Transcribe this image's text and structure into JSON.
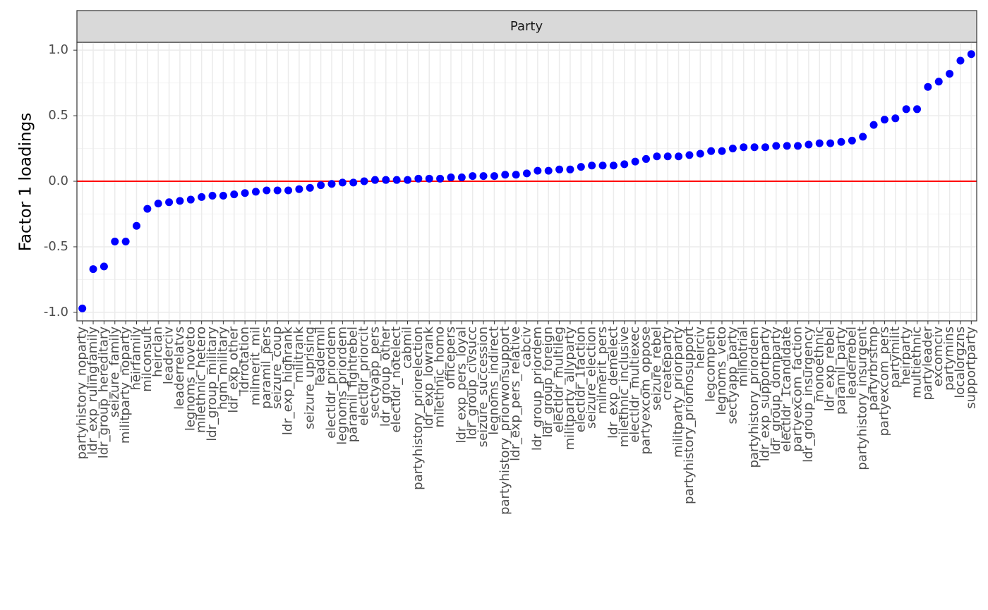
{
  "chart_data": {
    "type": "scatter",
    "facet": "Party",
    "y_label": "Factor 1 loadings",
    "categories": [
      "partyhistory_noparty",
      "ldr_exp_rulingfamily",
      "ldr_group_hereditary",
      "seizure_family",
      "militparty_noparty",
      "heirfamily",
      "milconsult",
      "heirclan",
      "leaderciv",
      "leaderrelatvs",
      "legnoms_noveto",
      "milethnic_hetero",
      "ldr_group_military",
      "hgm_military",
      "ldr_exp_other",
      "ldrrotation",
      "milmerit_mil",
      "paramil_pers",
      "seizure_coup",
      "ldr_exp_highrank",
      "militrank",
      "seizure_uprising",
      "leadermil",
      "electldr_priordem",
      "legnoms_priordem",
      "paramil_fightrebel",
      "electldr_priorcit",
      "sectyapp_pers",
      "ldr_group_other",
      "electldr_notelect",
      "cabmil",
      "partyhistory_priorelection",
      "ldr_exp_lowrank",
      "milethnic_homo",
      "officepers",
      "ldr_exp_pers_loyal",
      "ldr_group_civsucc",
      "seizure_succession",
      "legnoms_indirect",
      "partyhistory_priorwonsupport",
      "ldr_exp_pers_relative",
      "cabciv",
      "ldr_group_priordem",
      "ldr_group_foreign",
      "electldr_multileg",
      "militparty_allyparty",
      "electldr_1faction",
      "seizure_election",
      "milmerit_pers",
      "ldr_exp_demelect",
      "milethnic_inclusive",
      "electldr_multiexec",
      "partyexcom_oppose",
      "seizure_rebel",
      "createparty",
      "militparty_priorparty",
      "partyhistory_priornosupport",
      "heirciv",
      "legcompetn",
      "legnoms_veto",
      "sectyapp_party",
      "milnotrial",
      "partyhistory_priordem",
      "ldr_exp_supportparty",
      "ldr_group_domparty",
      "electldr_1candidate",
      "partyexcom_faction",
      "ldr_group_insurgency",
      "monoethnic",
      "ldr_exp_rebel",
      "paramil_party",
      "leaderrebel",
      "partyhistory_insurgent",
      "partyrbrstmp",
      "partyexcom_pers",
      "partymilit",
      "heirparty",
      "multiethnic",
      "partyleader",
      "excomciv",
      "partymins",
      "localorgzns",
      "supportparty"
    ],
    "values": [
      -0.97,
      -0.67,
      -0.65,
      -0.46,
      -0.46,
      -0.34,
      -0.21,
      -0.17,
      -0.16,
      -0.15,
      -0.14,
      -0.12,
      -0.11,
      -0.11,
      -0.1,
      -0.09,
      -0.08,
      -0.07,
      -0.07,
      -0.07,
      -0.06,
      -0.05,
      -0.03,
      -0.02,
      -0.01,
      -0.01,
      0.0,
      0.01,
      0.01,
      0.01,
      0.01,
      0.02,
      0.02,
      0.02,
      0.03,
      0.03,
      0.04,
      0.04,
      0.04,
      0.05,
      0.05,
      0.06,
      0.08,
      0.08,
      0.09,
      0.09,
      0.11,
      0.12,
      0.12,
      0.12,
      0.13,
      0.15,
      0.17,
      0.19,
      0.19,
      0.19,
      0.2,
      0.21,
      0.23,
      0.23,
      0.25,
      0.26,
      0.26,
      0.26,
      0.27,
      0.27,
      0.27,
      0.28,
      0.29,
      0.29,
      0.3,
      0.31,
      0.34,
      0.43,
      0.47,
      0.48,
      0.55,
      0.55,
      0.72,
      0.76,
      0.82,
      0.92,
      0.97
    ],
    "color": "#0000ff",
    "hline": 0,
    "hline_color": "#ff0000",
    "ylim": [
      -1.065,
      1.06
    ],
    "yticks": [
      {
        "value": -1,
        "label": "-1.0"
      },
      {
        "value": -0.5,
        "label": "-0.5"
      },
      {
        "value": 0,
        "label": "0.0"
      },
      {
        "value": 0.5,
        "label": "0.5"
      },
      {
        "value": 1,
        "label": "1.0"
      }
    ],
    "grid": true
  }
}
